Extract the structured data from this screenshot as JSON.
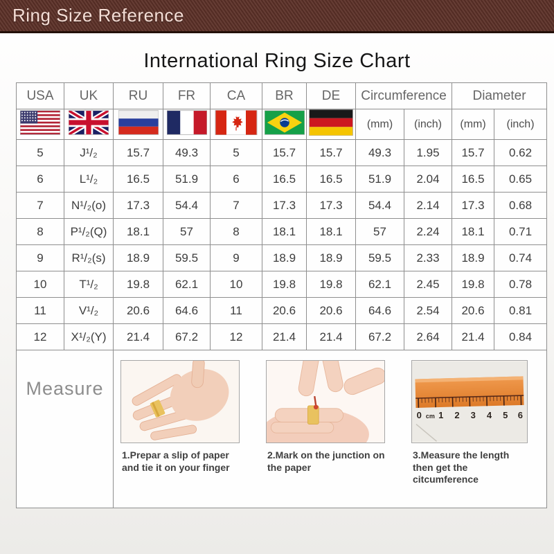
{
  "header": {
    "bar_title": "Ring Size Reference",
    "chart_title": "International Ring Size Chart"
  },
  "table": {
    "country_columns": [
      "USA",
      "UK",
      "RU",
      "FR",
      "CA",
      "BR",
      "DE"
    ],
    "group_columns": [
      "Circumference",
      "Diameter"
    ],
    "unit_labels": [
      "(mm)",
      "(inch)",
      "(mm)",
      "(inch)"
    ],
    "flags": [
      "usa-flag",
      "uk-flag",
      "russia-flag",
      "france-flag",
      "canada-flag",
      "brazil-flag",
      "germany-flag"
    ],
    "column_keys": [
      "usa",
      "uk",
      "ru",
      "fr",
      "ca",
      "br",
      "de",
      "circumference-mm",
      "circumference-inch",
      "diameter-mm",
      "diameter-inch"
    ]
  },
  "chart_data": {
    "type": "table",
    "title": "International Ring Size Chart",
    "columns": [
      "USA",
      "UK",
      "RU",
      "FR",
      "CA",
      "BR",
      "DE",
      "Circumference (mm)",
      "Circumference (inch)",
      "Diameter (mm)",
      "Diameter (inch)"
    ],
    "rows": [
      [
        "5",
        "J¹/₂",
        "15.7",
        "49.3",
        "5",
        "15.7",
        "15.7",
        "49.3",
        "1.95",
        "15.7",
        "0.62"
      ],
      [
        "6",
        "L¹/₂",
        "16.5",
        "51.9",
        "6",
        "16.5",
        "16.5",
        "51.9",
        "2.04",
        "16.5",
        "0.65"
      ],
      [
        "7",
        "N¹/₂(o)",
        "17.3",
        "54.4",
        "7",
        "17.3",
        "17.3",
        "54.4",
        "2.14",
        "17.3",
        "0.68"
      ],
      [
        "8",
        "P¹/₂(Q)",
        "18.1",
        "57",
        "8",
        "18.1",
        "18.1",
        "57",
        "2.24",
        "18.1",
        "0.71"
      ],
      [
        "9",
        "R¹/₂(s)",
        "18.9",
        "59.5",
        "9",
        "18.9",
        "18.9",
        "59.5",
        "2.33",
        "18.9",
        "0.74"
      ],
      [
        "10",
        "T¹/₂",
        "19.8",
        "62.1",
        "10",
        "19.8",
        "19.8",
        "62.1",
        "2.45",
        "19.8",
        "0.78"
      ],
      [
        "11",
        "V¹/₂",
        "20.6",
        "64.6",
        "11",
        "20.6",
        "20.6",
        "64.6",
        "2.54",
        "20.6",
        "0.81"
      ],
      [
        "12",
        "X¹/₂(Y)",
        "21.4",
        "67.2",
        "12",
        "21.4",
        "21.4",
        "67.2",
        "2.64",
        "21.4",
        "0.84"
      ]
    ]
  },
  "measure": {
    "label": "Measure",
    "steps": [
      {
        "illustration": "hand-with-paper-strip-photo",
        "caption": "1.Prepar a slip of paper and tie it on your finger"
      },
      {
        "illustration": "mark-junction-photo",
        "caption": "2.Mark on the junction on the paper"
      },
      {
        "illustration": "ruler-measuring-photo",
        "caption": "3.Measure the length then get the citcumference"
      }
    ],
    "ruler_labels": [
      "0",
      "cm",
      "1",
      "2",
      "3",
      "4",
      "5",
      "6"
    ]
  },
  "colors": {
    "topbar_background": "#5c3128",
    "topbar_border": "#241009",
    "topbar_text": "#f4ddd5",
    "table_border": "#8e8e8e",
    "header_text": "#666666",
    "cell_text": "#3d3d3d",
    "measure_text": "#8d8d8d",
    "paper_strip_orange": "#e8883a"
  }
}
